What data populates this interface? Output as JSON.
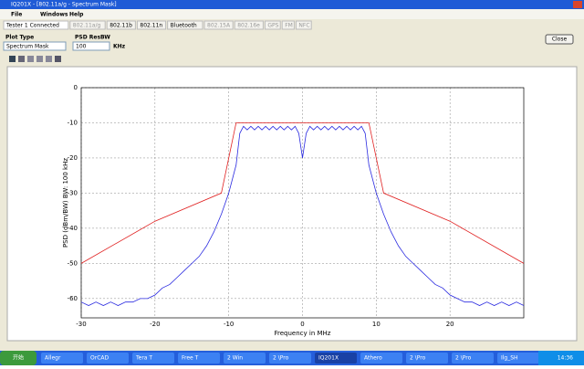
{
  "window": {
    "title": "IQ201X - [802.11a/g - Spectrum Mask]",
    "menu": [
      "File",
      "Windows",
      "Help"
    ],
    "tabs": [
      "Tester 1 Connected",
      "802.11a/g",
      "802.11b",
      "802.11n",
      "Bluetooth",
      "802.15A",
      "802.16e",
      "GPS",
      "FM",
      "NFC"
    ],
    "plot_type_label": "Plot Type",
    "plot_type_value": "Spectrum Mask",
    "resbw_label": "PSD ResBW",
    "resbw_value": "100",
    "resbw_unit": "KHz",
    "close_button": "Close"
  },
  "taskbar": {
    "start": "开始",
    "items": [
      "Allegr",
      "OrCAD",
      "Tera T",
      "Free T",
      "2 Win",
      "2 \\Pro",
      "IQ201X",
      "Athero",
      "2 \\Pro",
      "2 \\Pro",
      "Ilg_SH"
    ],
    "clock": "14:36"
  },
  "chart_data": {
    "type": "line",
    "x_label": "Frequency in MHz",
    "y_label": "PSD (dBm/BW) BW: 100 kHz",
    "xlim": [
      -30,
      30
    ],
    "ylim": [
      -65.5,
      0
    ],
    "xticks": [
      -30,
      -20,
      -10,
      0,
      10,
      20
    ],
    "yticks": [
      0,
      -10,
      -20,
      -30,
      -40,
      -50,
      -60
    ],
    "grid": true,
    "series": [
      {
        "color": "#2a2ae0",
        "x": [
          -30,
          -29,
          -28,
          -27,
          -26,
          -25,
          -24,
          -23,
          -22,
          -21,
          -20,
          -19,
          -18,
          -17,
          -16,
          -15,
          -14,
          -13,
          -12,
          -11,
          -10.5,
          -10,
          -9.5,
          -9,
          -8.5,
          -8,
          -7.5,
          -7,
          -6.5,
          -6,
          -5.5,
          -5,
          -4.5,
          -4,
          -3.5,
          -3,
          -2.5,
          -2,
          -1.5,
          -1,
          -0.5,
          0,
          0.5,
          1,
          1.5,
          2,
          2.5,
          3,
          3.5,
          4,
          4.5,
          5,
          5.5,
          6,
          6.5,
          7,
          7.5,
          8,
          8.5,
          9,
          9.5,
          10,
          10.5,
          11,
          12,
          13,
          14,
          15,
          16,
          17,
          18,
          19,
          20,
          21,
          22,
          23,
          24,
          25,
          26,
          27,
          28,
          29,
          30
        ],
        "values": [
          -61,
          -62,
          -61,
          -62,
          -61,
          -62,
          -61,
          -61,
          -60,
          -60,
          -59,
          -57,
          -56,
          -54,
          -52,
          -50,
          -48,
          -45,
          -41,
          -36,
          -33,
          -30,
          -26,
          -22,
          -13,
          -11,
          -12,
          -11,
          -12,
          -11,
          -12,
          -11,
          -12,
          -11,
          -12,
          -11,
          -12,
          -11,
          -12,
          -11,
          -13,
          -20,
          -13,
          -11,
          -12,
          -11,
          -12,
          -11,
          -12,
          -11,
          -12,
          -11,
          -12,
          -11,
          -12,
          -11,
          -12,
          -11,
          -13,
          -22,
          -26,
          -30,
          -33,
          -36,
          -41,
          -45,
          -48,
          -50,
          -52,
          -54,
          -56,
          -57,
          -59,
          -60,
          -61,
          -61,
          -62,
          -61,
          -62,
          -61,
          -62,
          -61,
          -62
        ]
      },
      {
        "color": "#e02020",
        "x": [
          -30,
          -20,
          -11,
          -9,
          9,
          11,
          20,
          30
        ],
        "values": [
          -50,
          -38,
          -30,
          -10,
          -10,
          -30,
          -38,
          -50
        ]
      }
    ]
  }
}
